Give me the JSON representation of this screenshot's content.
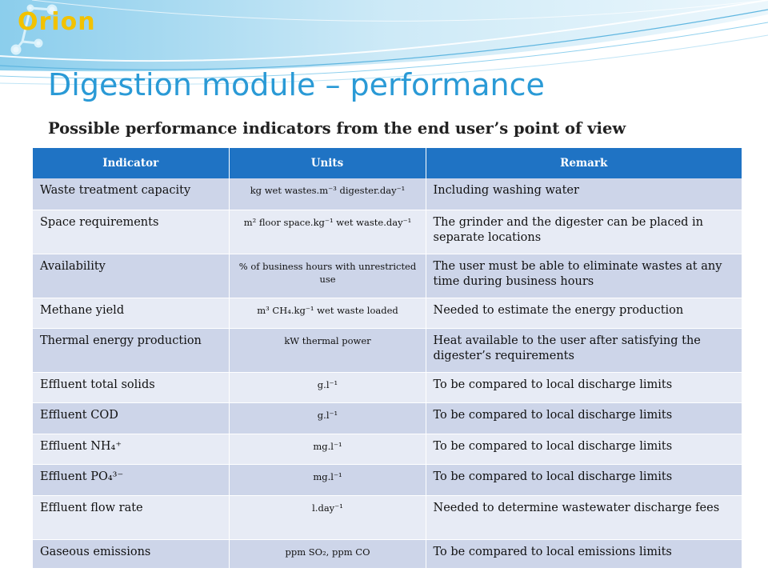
{
  "slide": {
    "logo_text": "Orion",
    "title": "Digestion module – performance",
    "subtitle": "Possible performance indicators from the end user’s point of view"
  },
  "table": {
    "headers": [
      "Indicator",
      "Units",
      "Remark"
    ],
    "rows": [
      {
        "indicator": "Waste treatment capacity",
        "units": "kg wet wastes.m⁻³ digester.day⁻¹",
        "remark": "Including washing water"
      },
      {
        "indicator": "Space requirements",
        "units": "m² floor space.kg⁻¹ wet waste.day⁻¹",
        "remark": "The grinder and the digester can be placed in separate locations"
      },
      {
        "indicator": "Availability",
        "units": "% of business hours with unrestricted use",
        "remark": "The user must be able to eliminate wastes at any time during business hours"
      },
      {
        "indicator": "Methane yield",
        "units": "m³ CH₄.kg⁻¹ wet waste loaded",
        "remark": "Needed to estimate the energy production"
      },
      {
        "indicator": "Thermal energy production",
        "units": "kW thermal power",
        "remark": "Heat available to the user after satisfying the digester’s requirements"
      },
      {
        "indicator": "Effluent total solids",
        "units": "g.l⁻¹",
        "remark": "To be compared to local discharge limits"
      },
      {
        "indicator": "Effluent COD",
        "units": "g.l⁻¹",
        "remark": "To be compared to local discharge limits"
      },
      {
        "indicator": "Effluent NH₄⁺",
        "units": "mg.l⁻¹",
        "remark": "To be compared to local discharge limits"
      },
      {
        "indicator": "Effluent PO₄³⁻",
        "units": "mg.l⁻¹",
        "remark": "To be compared to local discharge limits"
      },
      {
        "indicator": "Effluent flow rate",
        "units": "l.day⁻¹",
        "remark": "Needed to determine wastewater discharge fees"
      },
      {
        "indicator": "Gaseous emissions",
        "units": "ppm SO₂, ppm CO",
        "remark": "To be compared to local emissions limits"
      }
    ]
  },
  "colors": {
    "header_bg": "#1f73c4",
    "row_odd": "#cdd5e9",
    "row_even": "#e7ebf5",
    "title": "#2a9ad6",
    "logo": "#f2c200"
  }
}
